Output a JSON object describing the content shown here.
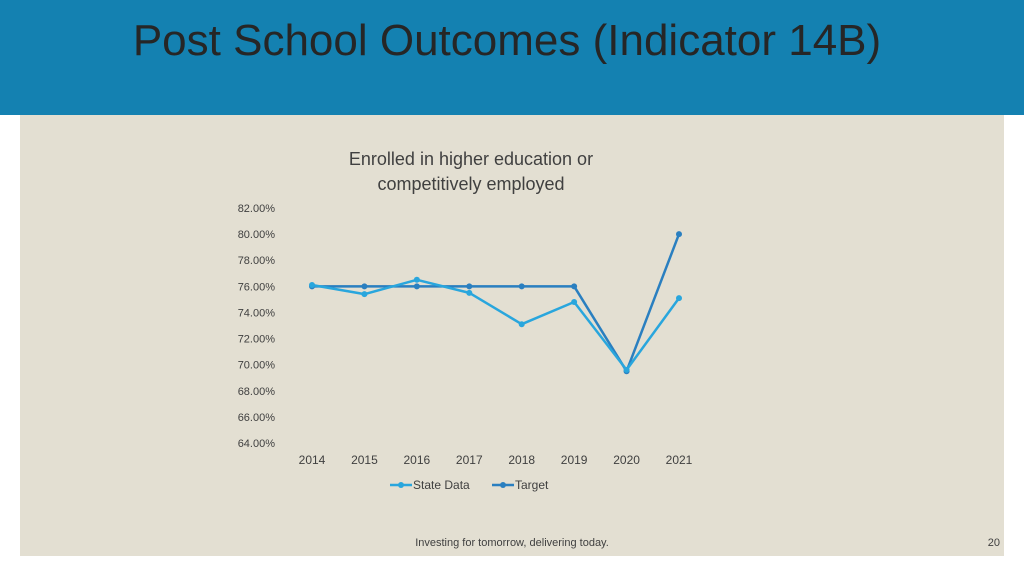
{
  "slide": {
    "title": "Post School Outcomes (Indicator 14B)",
    "footer": "Investing for tomorrow, delivering today.",
    "page_number": "20"
  },
  "colors": {
    "header": "#1481b1",
    "panel": "#e3dfd2",
    "state_series": "#29a6dd",
    "target_series": "#2a7fc0",
    "axis_text": "#404040"
  },
  "chart_data": {
    "type": "line",
    "title": "Enrolled in higher education or competitively employed",
    "title_lines": [
      "Enrolled in higher education or",
      "competitively employed"
    ],
    "x": [
      "2014",
      "2015",
      "2016",
      "2017",
      "2018",
      "2019",
      "2020",
      "2021"
    ],
    "y_ticks": [
      "82.00%",
      "80.00%",
      "78.00%",
      "76.00%",
      "74.00%",
      "72.00%",
      "70.00%",
      "68.00%",
      "66.00%",
      "64.00%"
    ],
    "ylim": [
      64,
      82
    ],
    "grid": false,
    "legend_position": "bottom",
    "series": [
      {
        "name": "State Data",
        "values": [
          76.1,
          75.4,
          76.5,
          75.5,
          73.1,
          74.8,
          69.6,
          75.1
        ]
      },
      {
        "name": "Target",
        "values": [
          76.0,
          76.0,
          76.0,
          76.0,
          76.0,
          76.0,
          69.5,
          80.0
        ]
      }
    ]
  }
}
